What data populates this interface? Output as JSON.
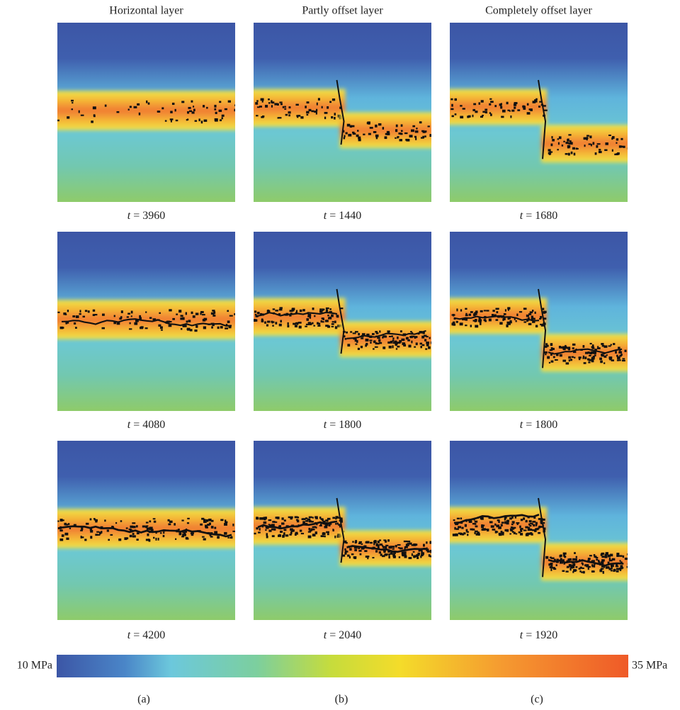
{
  "columns": [
    {
      "title": "Horizontal layer",
      "panels": [
        {
          "symbol": "t",
          "text": "= 3960"
        },
        {
          "symbol": "t",
          "text": "= 4080"
        },
        {
          "symbol": "t",
          "text": "= 4200"
        }
      ]
    },
    {
      "title": "Partly offset layer",
      "panels": [
        {
          "symbol": "t",
          "text": "= 1440"
        },
        {
          "symbol": "t",
          "text": "= 1800"
        },
        {
          "symbol": "t",
          "text": "= 2040"
        }
      ]
    },
    {
      "title": "Completely offset layer",
      "panels": [
        {
          "symbol": "t",
          "text": "= 1680"
        },
        {
          "symbol": "t",
          "text": "= 1800"
        },
        {
          "symbol": "t",
          "text": "= 1920"
        }
      ]
    }
  ],
  "colorbar": {
    "min_label": "10 MPa",
    "max_label": "35 MPa"
  },
  "subfigure_labels": [
    "(a)",
    "(b)",
    "(c)"
  ]
}
